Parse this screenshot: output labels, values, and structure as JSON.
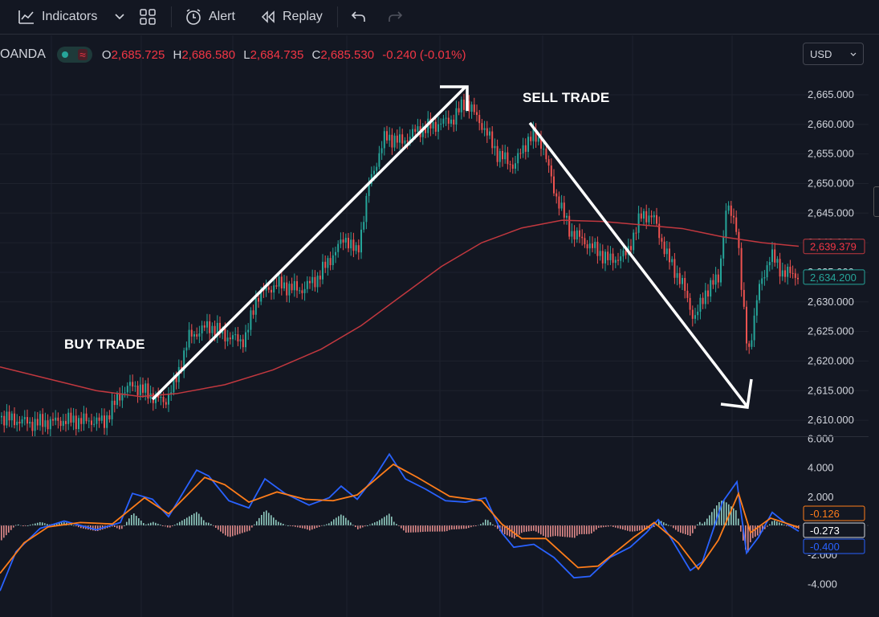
{
  "toolbar": {
    "indicators_label": "Indicators",
    "alert_label": "Alert",
    "replay_label": "Replay"
  },
  "legend": {
    "symbol": "OANDA",
    "open_key": "O",
    "open": "2,685.725",
    "high_key": "H",
    "high": "2,686.580",
    "low_key": "L",
    "low": "2,684.735",
    "close_key": "C",
    "close": "2,685.530",
    "change": "-0.240 (-0.01%)"
  },
  "currency": "USD",
  "annotations": {
    "buy": "BUY TRADE",
    "sell": "SELL TRADE"
  },
  "price_axis": {
    "ticks": [
      "2,665.000",
      "2,660.000",
      "2,655.000",
      "2,650.000",
      "2,645.000",
      "2,640.000",
      "2,635.000",
      "2,630.000",
      "2,625.000",
      "2,620.000",
      "2,615.000",
      "2,610.000"
    ],
    "ma_label": "2,639.379",
    "last_label": "2,634.200"
  },
  "macd_axis": {
    "ticks": [
      "6.000",
      "4.000",
      "2.000",
      "-2.000",
      "-4.000"
    ],
    "signal_label": "-0.126",
    "hist_label": "-0.273",
    "macd_label": "-0.400"
  },
  "colors": {
    "background": "#131722",
    "up": "#26a69a",
    "down": "#ef5350",
    "ma": "#c2383f",
    "macd": "#2962ff",
    "signal": "#ff7d1a",
    "arrow": "#ffffff"
  },
  "icons": [
    "indicators-icon",
    "chevron-down-icon",
    "layouts-icon",
    "alert-icon",
    "replay-icon",
    "undo-icon",
    "redo-icon"
  ]
}
